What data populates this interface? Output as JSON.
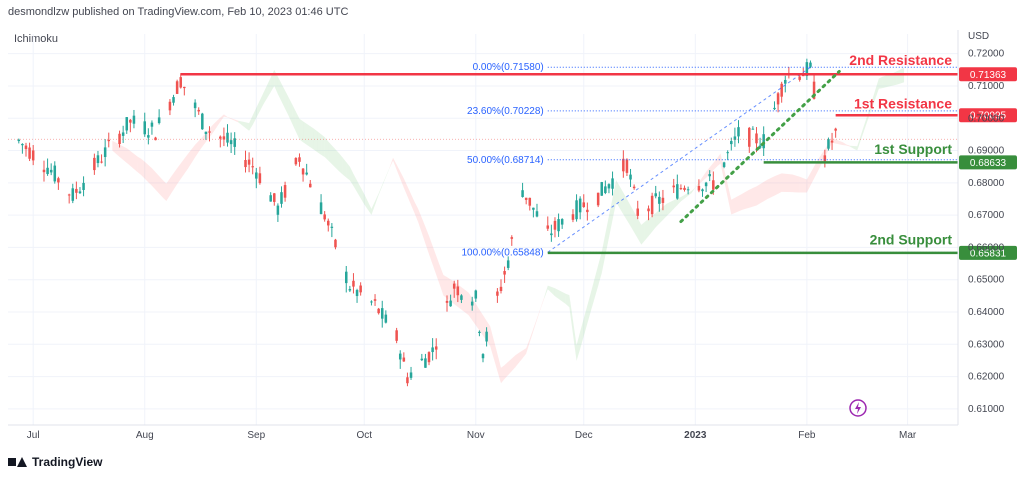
{
  "header": {
    "published": "desmondlzw published on TradingView.com, Feb 10, 2023 01:46 UTC",
    "indicator": "Ichimoku",
    "currency": "USD"
  },
  "footer": {
    "brand": "TradingView"
  },
  "colors": {
    "resistance": "#f23645",
    "support": "#388e3c",
    "fib": "#2962ff",
    "bull": "#26a69a",
    "bear": "#ef5350"
  },
  "chart_data": {
    "type": "candlestick",
    "x_labels": [
      "Jul",
      "Aug",
      "Sep",
      "Oct",
      "Nov",
      "Dec",
      "2023",
      "Feb",
      "Mar"
    ],
    "y_ticks": [
      "0.72000",
      "0.71000",
      "0.70000",
      "0.69000",
      "0.68000",
      "0.67000",
      "0.66000",
      "0.65000",
      "0.64000",
      "0.63000",
      "0.62000",
      "0.61000"
    ],
    "ylim": [
      0.605,
      0.723
    ],
    "price_series": [
      {
        "date": "2022-06-27",
        "close": 0.693
      },
      {
        "date": "2022-07-05",
        "close": 0.685
      },
      {
        "date": "2022-07-12",
        "close": 0.676
      },
      {
        "date": "2022-07-20",
        "close": 0.688
      },
      {
        "date": "2022-07-28",
        "close": 0.699
      },
      {
        "date": "2022-08-04",
        "close": 0.696
      },
      {
        "date": "2022-08-11",
        "close": 0.712
      },
      {
        "date": "2022-08-18",
        "close": 0.697
      },
      {
        "date": "2022-08-25",
        "close": 0.692
      },
      {
        "date": "2022-09-01",
        "close": 0.684
      },
      {
        "date": "2022-09-07",
        "close": 0.672
      },
      {
        "date": "2022-09-13",
        "close": 0.688
      },
      {
        "date": "2022-09-20",
        "close": 0.67
      },
      {
        "date": "2022-09-27",
        "close": 0.648
      },
      {
        "date": "2022-10-04",
        "close": 0.642
      },
      {
        "date": "2022-10-10",
        "close": 0.632
      },
      {
        "date": "2022-10-13",
        "close": 0.62
      },
      {
        "date": "2022-10-20",
        "close": 0.628
      },
      {
        "date": "2022-10-26",
        "close": 0.648
      },
      {
        "date": "2022-11-01",
        "close": 0.644
      },
      {
        "date": "2022-11-03",
        "close": 0.628
      },
      {
        "date": "2022-11-10",
        "close": 0.656
      },
      {
        "date": "2022-11-14",
        "close": 0.678
      },
      {
        "date": "2022-11-21",
        "close": 0.664
      },
      {
        "date": "2022-11-28",
        "close": 0.671
      },
      {
        "date": "2022-12-05",
        "close": 0.676
      },
      {
        "date": "2022-12-13",
        "close": 0.686
      },
      {
        "date": "2022-12-16",
        "close": 0.671
      },
      {
        "date": "2022-12-23",
        "close": 0.675
      },
      {
        "date": "2022-12-30",
        "close": 0.68
      },
      {
        "date": "2023-01-06",
        "close": 0.68
      },
      {
        "date": "2023-01-13",
        "close": 0.695
      },
      {
        "date": "2023-01-20",
        "close": 0.693
      },
      {
        "date": "2023-01-26",
        "close": 0.713
      },
      {
        "date": "2023-02-02",
        "close": 0.715
      },
      {
        "date": "2023-02-06",
        "close": 0.689
      },
      {
        "date": "2023-02-09",
        "close": 0.695
      }
    ],
    "horizontal_levels": [
      {
        "label": "2nd Resistance",
        "price": "0.71363",
        "color": "#f23645"
      },
      {
        "label": "1st Resistance",
        "price": "0.70095",
        "color": "#f23645"
      },
      {
        "label": "1st Support",
        "price": "0.68633",
        "color": "#388e3c"
      },
      {
        "label": "2nd Support",
        "price": "0.65831",
        "color": "#388e3c"
      }
    ],
    "fibonacci": [
      {
        "label": "0.00%(0.71580)",
        "price": 0.7158
      },
      {
        "label": "23.60%(0.70228)",
        "price": 0.70228
      },
      {
        "label": "50.00%(0.68714)",
        "price": 0.68714
      },
      {
        "label": "100.00%(0.65848)",
        "price": 0.65848
      }
    ],
    "grid": true
  }
}
